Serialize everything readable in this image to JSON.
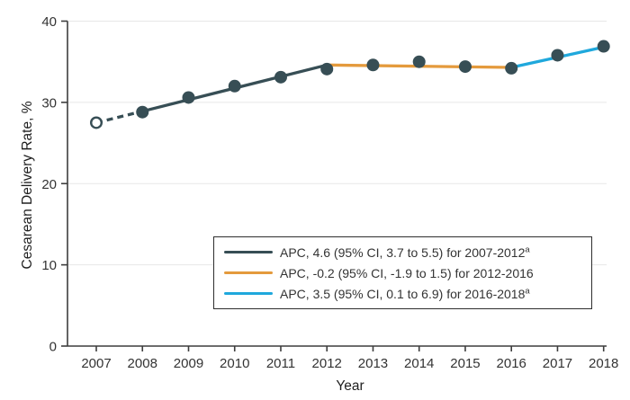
{
  "chart_data": {
    "type": "line",
    "title": "",
    "xlabel": "Year",
    "ylabel": "Cesarean Delivery Rate, %",
    "x": [
      2007,
      2008,
      2009,
      2010,
      2011,
      2012,
      2013,
      2014,
      2015,
      2016,
      2017,
      2018
    ],
    "ylim": [
      0,
      40
    ],
    "yticks": [
      0,
      10,
      20,
      30,
      40
    ],
    "grid": true,
    "legend_position": "inside-lower-right",
    "marker_color": "#374E55",
    "axis_color": "#3d3d3d",
    "grid_color": "#e7e7e7",
    "text_color": "#333333",
    "points": [
      {
        "year": 2007,
        "value": 27.5,
        "marker": "open"
      },
      {
        "year": 2008,
        "value": 28.8,
        "marker": "filled"
      },
      {
        "year": 2009,
        "value": 30.6,
        "marker": "filled"
      },
      {
        "year": 2010,
        "value": 32.0,
        "marker": "filled"
      },
      {
        "year": 2011,
        "value": 33.1,
        "marker": "filled"
      },
      {
        "year": 2012,
        "value": 34.1,
        "marker": "filled"
      },
      {
        "year": 2013,
        "value": 34.6,
        "marker": "filled"
      },
      {
        "year": 2014,
        "value": 35.0,
        "marker": "filled"
      },
      {
        "year": 2015,
        "value": 34.4,
        "marker": "filled"
      },
      {
        "year": 2016,
        "value": 34.2,
        "marker": "filled"
      },
      {
        "year": 2017,
        "value": 35.8,
        "marker": "filled"
      },
      {
        "year": 2018,
        "value": 36.9,
        "marker": "filled"
      }
    ],
    "series": [
      {
        "name": "APC 4.6 trend, 2007-2012",
        "color": "#374E55",
        "apc": "4.6",
        "dashed_until": 2008,
        "points": [
          [
            2007,
            27.5
          ],
          [
            2008,
            28.9
          ],
          [
            2012,
            34.6
          ]
        ]
      },
      {
        "name": "APC -0.2 trend, 2012-2016",
        "color": "#E49A3C",
        "apc": "-0.2",
        "points": [
          [
            2012,
            34.6
          ],
          [
            2016,
            34.3
          ]
        ]
      },
      {
        "name": "APC 3.5 trend, 2016-2018",
        "color": "#1FA8DC",
        "apc": "3.5",
        "points": [
          [
            2016,
            34.3
          ],
          [
            2018,
            36.8
          ]
        ]
      }
    ],
    "legend": {
      "items": [
        {
          "label": "APC, 4.6 (95% CI, 3.7 to 5.5) for 2007-2012",
          "sup": "a",
          "color": "#374E55"
        },
        {
          "label": "APC, -0.2 (95% CI, -1.9 to 1.5) for 2012-2016",
          "sup": "",
          "color": "#E49A3C"
        },
        {
          "label": "APC, 3.5 (95% CI, 0.1 to 6.9) for 2016-2018",
          "sup": "a",
          "color": "#1FA8DC"
        }
      ]
    }
  }
}
